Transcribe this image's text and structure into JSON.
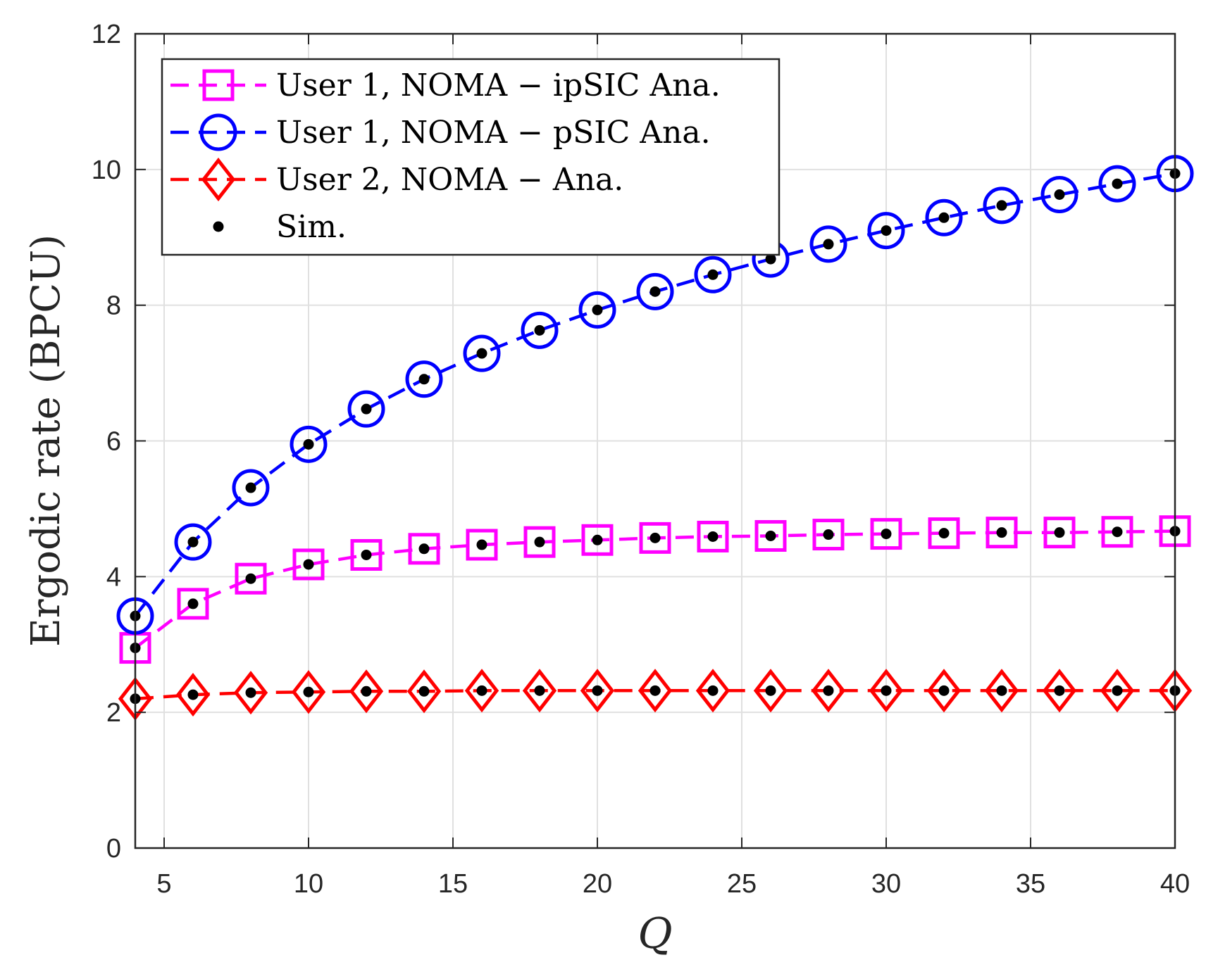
{
  "chart_data": {
    "type": "line",
    "title": "",
    "xlabel": "Q",
    "ylabel": "Ergodic rate (BPCU)",
    "xlim": [
      4,
      40
    ],
    "ylim": [
      0,
      12
    ],
    "xticks": [
      5,
      10,
      15,
      20,
      25,
      30,
      35,
      40
    ],
    "yticks": [
      0,
      2,
      4,
      6,
      8,
      10,
      12
    ],
    "grid": true,
    "legend_position": "top-left",
    "x": [
      4,
      6,
      8,
      10,
      12,
      14,
      16,
      18,
      20,
      22,
      24,
      26,
      28,
      30,
      32,
      34,
      36,
      38,
      40
    ],
    "series": [
      {
        "name": "User 1, NOMA − ipSIC Ana.",
        "color": "#ff00ff",
        "marker": "square",
        "values": [
          2.95,
          3.6,
          3.97,
          4.18,
          4.32,
          4.41,
          4.47,
          4.51,
          4.54,
          4.57,
          4.59,
          4.6,
          4.62,
          4.63,
          4.64,
          4.65,
          4.65,
          4.66,
          4.67
        ]
      },
      {
        "name": "User 1, NOMA − pSIC Ana.",
        "color": "#0000ff",
        "marker": "circle",
        "values": [
          3.42,
          4.51,
          5.31,
          5.95,
          6.47,
          6.91,
          7.29,
          7.63,
          7.93,
          8.2,
          8.45,
          8.68,
          8.9,
          9.1,
          9.29,
          9.47,
          9.63,
          9.79,
          9.94
        ]
      },
      {
        "name": "User 2, NOMA − Ana.",
        "color": "#ff0000",
        "marker": "diamond",
        "values": [
          2.2,
          2.26,
          2.29,
          2.3,
          2.31,
          2.31,
          2.32,
          2.32,
          2.32,
          2.32,
          2.32,
          2.32,
          2.32,
          2.32,
          2.32,
          2.32,
          2.32,
          2.32,
          2.32
        ]
      }
    ],
    "sim": {
      "name": "Sim.",
      "color": "#000000",
      "marker": "dot"
    }
  }
}
